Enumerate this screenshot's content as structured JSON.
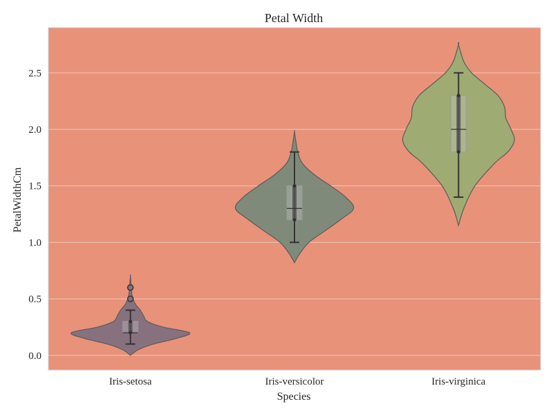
{
  "chart_data": {
    "type": "violin",
    "title": "Petal Width",
    "xlabel": "Species",
    "ylabel": "PetalWidthCm",
    "categories": [
      "Iris-setosa",
      "Iris-versicolor",
      "Iris-virginica"
    ],
    "ylim": [
      -0.13,
      2.9
    ],
    "yticks": [
      0.0,
      0.5,
      1.0,
      1.5,
      2.0,
      2.5
    ],
    "ytick_labels": [
      "0.0",
      "0.5",
      "1.0",
      "1.5",
      "2.0",
      "2.5"
    ],
    "grid": "horizontal",
    "background_color": "#E8927A",
    "violins": [
      {
        "category": "Iris-setosa",
        "color": "#83707F",
        "min": 0.1,
        "q1": 0.2,
        "median": 0.2,
        "q3": 0.3,
        "max": 0.4,
        "whisker_low": 0.1,
        "whisker_high": 0.4,
        "outliers": [
          0.5,
          0.6
        ],
        "density": [
          [
            0.0,
            0.0
          ],
          [
            0.05,
            0.12
          ],
          [
            0.1,
            0.35
          ],
          [
            0.15,
            0.7
          ],
          [
            0.2,
            0.9
          ],
          [
            0.25,
            0.5
          ],
          [
            0.3,
            0.26
          ],
          [
            0.35,
            0.2
          ],
          [
            0.4,
            0.15
          ],
          [
            0.45,
            0.08
          ],
          [
            0.5,
            0.04
          ],
          [
            0.55,
            0.02
          ],
          [
            0.6,
            0.015
          ],
          [
            0.7,
            0.0
          ]
        ]
      },
      {
        "category": "Iris-versicolor",
        "color": "#7A8A7A",
        "min": 1.0,
        "q1": 1.2,
        "median": 1.3,
        "q3": 1.5,
        "max": 1.8,
        "whisker_low": 1.0,
        "whisker_high": 1.8,
        "outliers": [],
        "density": [
          [
            0.82,
            0.0
          ],
          [
            0.9,
            0.08
          ],
          [
            1.0,
            0.22
          ],
          [
            1.1,
            0.46
          ],
          [
            1.2,
            0.7
          ],
          [
            1.3,
            0.9
          ],
          [
            1.4,
            0.78
          ],
          [
            1.5,
            0.55
          ],
          [
            1.6,
            0.3
          ],
          [
            1.7,
            0.12
          ],
          [
            1.8,
            0.05
          ],
          [
            1.9,
            0.02
          ],
          [
            1.98,
            0.0
          ]
        ]
      },
      {
        "category": "Iris-virginica",
        "color": "#9AAD72",
        "min": 1.4,
        "q1": 1.8,
        "median": 2.0,
        "q3": 2.3,
        "max": 2.5,
        "whisker_low": 1.4,
        "whisker_high": 2.5,
        "outliers": [],
        "density": [
          [
            1.15,
            0.0
          ],
          [
            1.3,
            0.08
          ],
          [
            1.5,
            0.25
          ],
          [
            1.7,
            0.55
          ],
          [
            1.8,
            0.75
          ],
          [
            1.9,
            0.85
          ],
          [
            2.0,
            0.8
          ],
          [
            2.1,
            0.72
          ],
          [
            2.2,
            0.7
          ],
          [
            2.3,
            0.6
          ],
          [
            2.4,
            0.4
          ],
          [
            2.5,
            0.2
          ],
          [
            2.6,
            0.08
          ],
          [
            2.75,
            0.0
          ]
        ]
      }
    ]
  }
}
